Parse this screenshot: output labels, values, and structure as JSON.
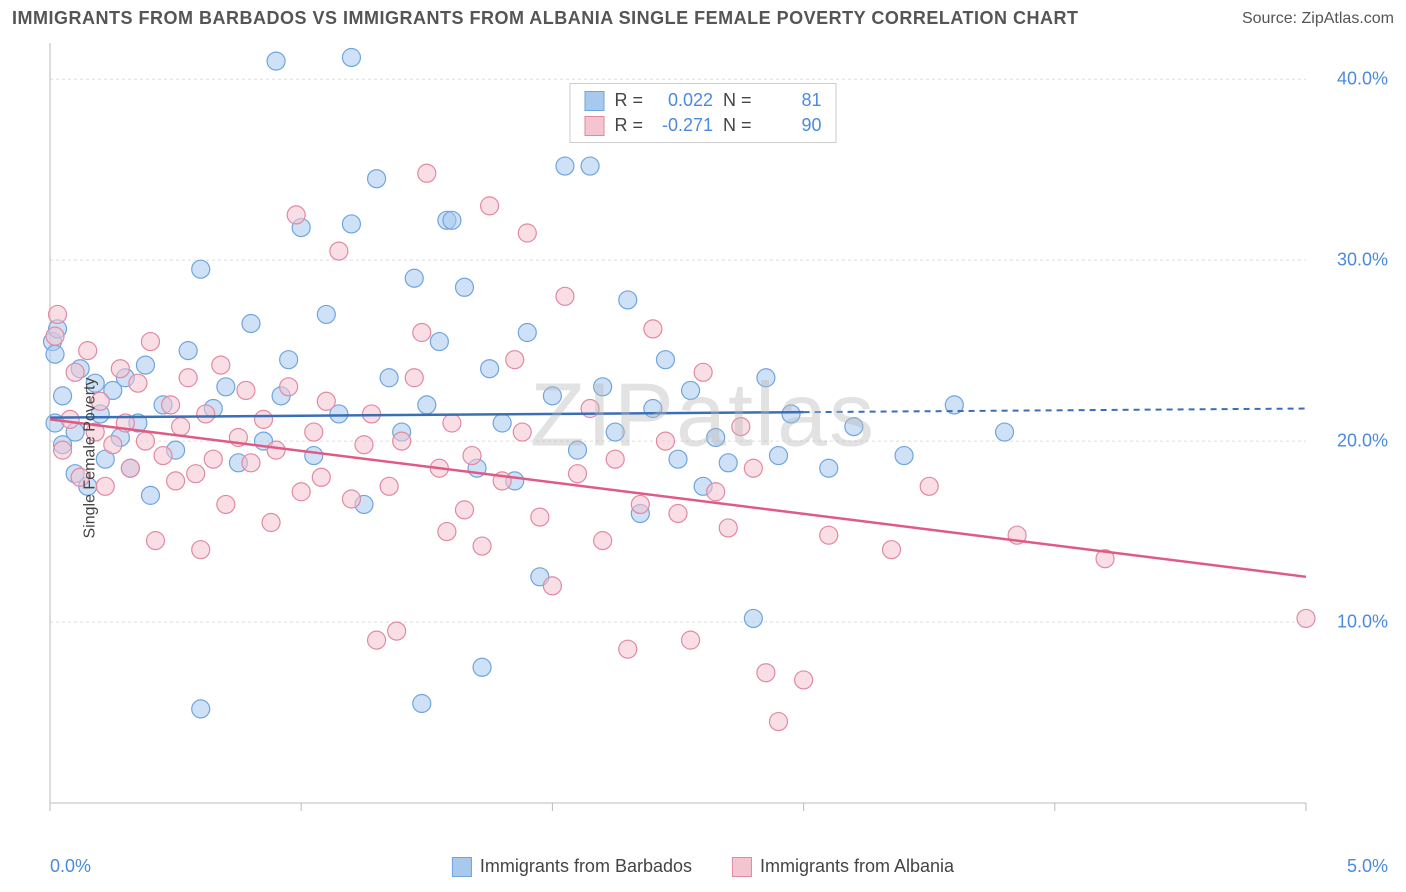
{
  "header": {
    "title": "IMMIGRANTS FROM BARBADOS VS IMMIGRANTS FROM ALBANIA SINGLE FEMALE POVERTY CORRELATION CHART",
    "source": "Source: ZipAtlas.com"
  },
  "watermark": "ZIPatlas",
  "chart": {
    "type": "scatter-correlation",
    "ylabel": "Single Female Poverty",
    "xlim": [
      0.0,
      5.0
    ],
    "ylim": [
      0.0,
      42.0
    ],
    "x_ticks": [
      0.0,
      1.0,
      2.0,
      3.0,
      4.0,
      5.0
    ],
    "x_tick_labels_shown": {
      "0": "0.0%",
      "5": "5.0%"
    },
    "y_ticks": [
      10.0,
      20.0,
      30.0,
      40.0
    ],
    "y_tick_labels": [
      "10.0%",
      "20.0%",
      "30.0%",
      "40.0%"
    ],
    "grid_color": "#dddddd",
    "axis_color": "#bbbbbb",
    "background_color": "#ffffff",
    "marker_radius": 9,
    "marker_opacity": 0.55,
    "series": [
      {
        "name": "Immigrants from Barbados",
        "fill": "#a8c9ee",
        "stroke": "#6fa5de",
        "line_color": "#3b6fb5",
        "R": "0.022",
        "N": "81",
        "trend": {
          "x1": 0.0,
          "y1": 21.3,
          "x2": 3.0,
          "y2": 21.6,
          "dash_x2": 5.0,
          "dash_y2": 21.8
        },
        "points": [
          [
            0.01,
            25.5
          ],
          [
            0.02,
            24.8
          ],
          [
            0.02,
            21.0
          ],
          [
            0.03,
            26.2
          ],
          [
            0.05,
            22.5
          ],
          [
            0.05,
            19.8
          ],
          [
            0.1,
            20.5
          ],
          [
            0.1,
            18.2
          ],
          [
            0.12,
            24.0
          ],
          [
            0.15,
            17.5
          ],
          [
            0.18,
            23.2
          ],
          [
            0.2,
            21.5
          ],
          [
            0.22,
            19.0
          ],
          [
            0.25,
            22.8
          ],
          [
            0.28,
            20.2
          ],
          [
            0.3,
            23.5
          ],
          [
            0.32,
            18.5
          ],
          [
            0.35,
            21.0
          ],
          [
            0.38,
            24.2
          ],
          [
            0.4,
            17.0
          ],
          [
            0.45,
            22.0
          ],
          [
            0.5,
            19.5
          ],
          [
            0.55,
            25.0
          ],
          [
            0.6,
            29.5
          ],
          [
            0.6,
            5.2
          ],
          [
            0.65,
            21.8
          ],
          [
            0.7,
            23.0
          ],
          [
            0.75,
            18.8
          ],
          [
            0.8,
            26.5
          ],
          [
            0.85,
            20.0
          ],
          [
            0.9,
            41.0
          ],
          [
            0.92,
            22.5
          ],
          [
            0.95,
            24.5
          ],
          [
            1.0,
            31.8
          ],
          [
            1.05,
            19.2
          ],
          [
            1.1,
            27.0
          ],
          [
            1.15,
            21.5
          ],
          [
            1.2,
            41.2
          ],
          [
            1.2,
            32.0
          ],
          [
            1.25,
            16.5
          ],
          [
            1.3,
            34.5
          ],
          [
            1.35,
            23.5
          ],
          [
            1.4,
            20.5
          ],
          [
            1.45,
            29.0
          ],
          [
            1.48,
            5.5
          ],
          [
            1.5,
            22.0
          ],
          [
            1.55,
            25.5
          ],
          [
            1.58,
            32.2
          ],
          [
            1.6,
            32.2
          ],
          [
            1.65,
            28.5
          ],
          [
            1.7,
            18.5
          ],
          [
            1.72,
            7.5
          ],
          [
            1.75,
            24.0
          ],
          [
            1.8,
            21.0
          ],
          [
            1.85,
            17.8
          ],
          [
            1.9,
            26.0
          ],
          [
            1.95,
            12.5
          ],
          [
            2.0,
            22.5
          ],
          [
            2.05,
            35.2
          ],
          [
            2.1,
            19.5
          ],
          [
            2.15,
            35.2
          ],
          [
            2.2,
            23.0
          ],
          [
            2.25,
            20.5
          ],
          [
            2.3,
            27.8
          ],
          [
            2.35,
            16.0
          ],
          [
            2.4,
            21.8
          ],
          [
            2.45,
            24.5
          ],
          [
            2.5,
            19.0
          ],
          [
            2.55,
            22.8
          ],
          [
            2.6,
            17.5
          ],
          [
            2.65,
            20.2
          ],
          [
            2.7,
            18.8
          ],
          [
            2.8,
            10.2
          ],
          [
            2.85,
            23.5
          ],
          [
            2.9,
            19.2
          ],
          [
            2.95,
            21.5
          ],
          [
            3.1,
            18.5
          ],
          [
            3.2,
            20.8
          ],
          [
            3.4,
            19.2
          ],
          [
            3.6,
            22.0
          ],
          [
            3.8,
            20.5
          ]
        ]
      },
      {
        "name": "Immigrants from Albania",
        "fill": "#f4c5d0",
        "stroke": "#e289a2",
        "line_color": "#e05a85",
        "R": "-0.271",
        "N": "90",
        "trend": {
          "x1": 0.0,
          "y1": 21.2,
          "x2": 5.0,
          "y2": 12.5,
          "dash_x2": 5.0,
          "dash_y2": 12.5
        },
        "points": [
          [
            0.02,
            25.8
          ],
          [
            0.03,
            27.0
          ],
          [
            0.05,
            19.5
          ],
          [
            0.08,
            21.2
          ],
          [
            0.1,
            23.8
          ],
          [
            0.12,
            18.0
          ],
          [
            0.15,
            25.0
          ],
          [
            0.18,
            20.5
          ],
          [
            0.2,
            22.2
          ],
          [
            0.22,
            17.5
          ],
          [
            0.25,
            19.8
          ],
          [
            0.28,
            24.0
          ],
          [
            0.3,
            21.0
          ],
          [
            0.32,
            18.5
          ],
          [
            0.35,
            23.2
          ],
          [
            0.38,
            20.0
          ],
          [
            0.4,
            25.5
          ],
          [
            0.42,
            14.5
          ],
          [
            0.45,
            19.2
          ],
          [
            0.48,
            22.0
          ],
          [
            0.5,
            17.8
          ],
          [
            0.52,
            20.8
          ],
          [
            0.55,
            23.5
          ],
          [
            0.58,
            18.2
          ],
          [
            0.6,
            14.0
          ],
          [
            0.62,
            21.5
          ],
          [
            0.65,
            19.0
          ],
          [
            0.68,
            24.2
          ],
          [
            0.7,
            16.5
          ],
          [
            0.75,
            20.2
          ],
          [
            0.78,
            22.8
          ],
          [
            0.8,
            18.8
          ],
          [
            0.85,
            21.2
          ],
          [
            0.88,
            15.5
          ],
          [
            0.9,
            19.5
          ],
          [
            0.95,
            23.0
          ],
          [
            0.98,
            32.5
          ],
          [
            1.0,
            17.2
          ],
          [
            1.05,
            20.5
          ],
          [
            1.08,
            18.0
          ],
          [
            1.1,
            22.2
          ],
          [
            1.15,
            30.5
          ],
          [
            1.2,
            16.8
          ],
          [
            1.25,
            19.8
          ],
          [
            1.28,
            21.5
          ],
          [
            1.3,
            9.0
          ],
          [
            1.35,
            17.5
          ],
          [
            1.38,
            9.5
          ],
          [
            1.4,
            20.0
          ],
          [
            1.45,
            23.5
          ],
          [
            1.48,
            26.0
          ],
          [
            1.5,
            34.8
          ],
          [
            1.55,
            18.5
          ],
          [
            1.58,
            15.0
          ],
          [
            1.6,
            21.0
          ],
          [
            1.65,
            16.2
          ],
          [
            1.68,
            19.2
          ],
          [
            1.72,
            14.2
          ],
          [
            1.75,
            33.0
          ],
          [
            1.8,
            17.8
          ],
          [
            1.85,
            24.5
          ],
          [
            1.88,
            20.5
          ],
          [
            1.9,
            31.5
          ],
          [
            1.95,
            15.8
          ],
          [
            2.0,
            12.0
          ],
          [
            2.05,
            28.0
          ],
          [
            2.1,
            18.2
          ],
          [
            2.15,
            21.8
          ],
          [
            2.2,
            14.5
          ],
          [
            2.25,
            19.0
          ],
          [
            2.3,
            8.5
          ],
          [
            2.35,
            16.5
          ],
          [
            2.4,
            26.2
          ],
          [
            2.45,
            20.0
          ],
          [
            2.5,
            16.0
          ],
          [
            2.55,
            9.0
          ],
          [
            2.6,
            23.8
          ],
          [
            2.65,
            17.2
          ],
          [
            2.7,
            15.2
          ],
          [
            2.75,
            20.8
          ],
          [
            2.8,
            18.5
          ],
          [
            2.85,
            7.2
          ],
          [
            2.9,
            4.5
          ],
          [
            3.0,
            6.8
          ],
          [
            3.1,
            14.8
          ],
          [
            3.35,
            14.0
          ],
          [
            3.5,
            17.5
          ],
          [
            3.85,
            14.8
          ],
          [
            4.2,
            13.5
          ],
          [
            5.0,
            10.2
          ]
        ]
      }
    ],
    "legend_bottom": [
      {
        "label": "Immigrants from Barbados",
        "fill": "#a8c9ee",
        "stroke": "#6fa5de"
      },
      {
        "label": "Immigrants from Albania",
        "fill": "#f4c5d0",
        "stroke": "#e289a2"
      }
    ]
  }
}
